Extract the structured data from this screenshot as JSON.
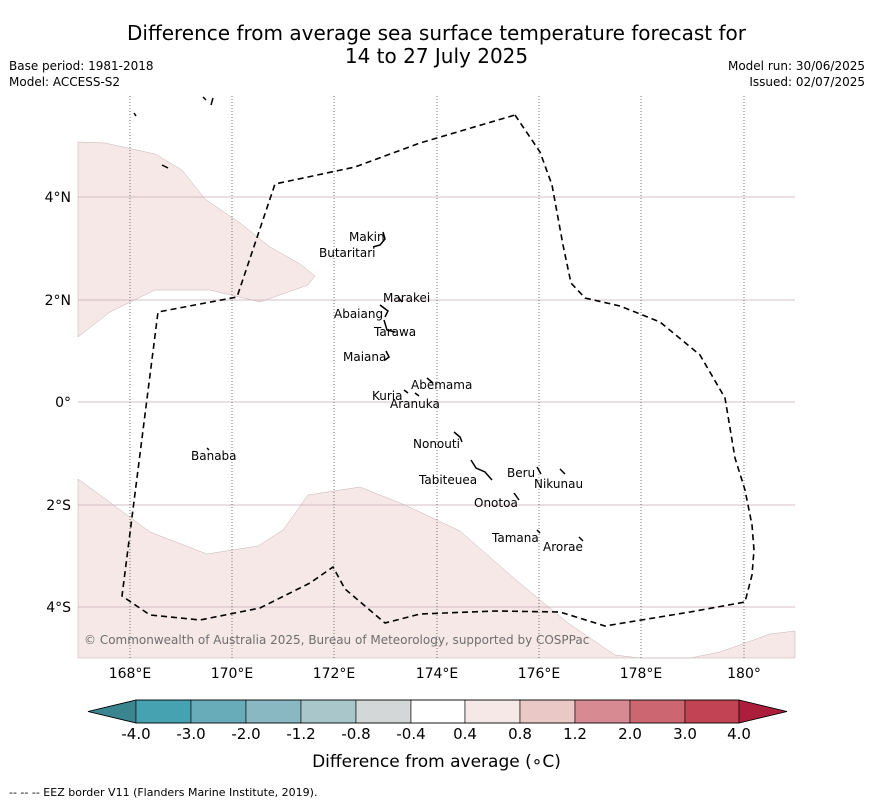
{
  "header": {
    "title_line1": "Difference from average sea surface temperature forecast for",
    "title_line2": "14 to 27 July 2025",
    "base_period": "Base period: 1981-2018",
    "model": "Model: ACCESS-S2",
    "model_run": "Model run: 30/06/2025",
    "issued": "Issued: 02/07/2025"
  },
  "map": {
    "lat_labels": [
      "4°N",
      "2°N",
      "0°",
      "2°S",
      "4°S"
    ],
    "lon_labels": [
      "168°E",
      "170°E",
      "172°E",
      "174°E",
      "176°E",
      "178°E",
      "180°"
    ],
    "places": [
      "Makin",
      "Butaritari",
      "Marakei",
      "Abaiang",
      "Tarawa",
      "Maiana",
      "Abemama",
      "Kuria",
      "Aranuka",
      "Nonouti",
      "Banaba",
      "Tabiteuea",
      "Beru",
      "Nikunau",
      "Onotoa",
      "Tamana",
      "Arorae"
    ],
    "copyright": "© Commonwealth of Australia 2025, Bureau of Meteorology, supported by COSPPac",
    "anomaly_fill_color": "#f5e8e7",
    "eez_line_color": "#000000",
    "grid_line_color": "#c9aeb8"
  },
  "colorbar": {
    "ticks": [
      "-4.0",
      "-3.0",
      "-2.0",
      "-1.2",
      "-0.8",
      "-0.4",
      "0.4",
      "0.8",
      "1.2",
      "2.0",
      "3.0",
      "4.0"
    ],
    "colors": [
      "#3a8590",
      "#46a1b0",
      "#68acb9",
      "#89b7c2",
      "#a9c7ca",
      "#d4d7d7",
      "#ffffff",
      "#f5e8e7",
      "#e9c8c6",
      "#d78a92",
      "#cc6670",
      "#c24454",
      "#ab1e3c"
    ],
    "title": "Difference from average (∘C)"
  },
  "footnote": "--  --  -- EEZ border V11 (Flanders Marine Institute, 2019)."
}
